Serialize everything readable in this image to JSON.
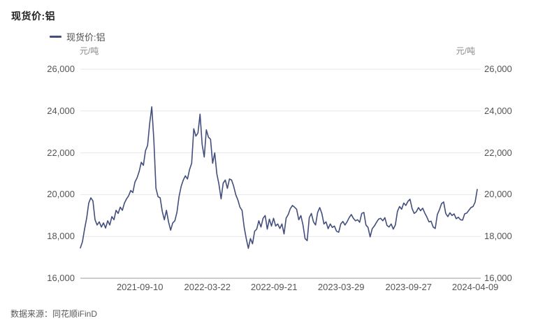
{
  "header": {
    "title": "现货价:铝"
  },
  "legend": {
    "label": "现货价:铝",
    "swatch_color": "#434e7d"
  },
  "axes": {
    "unit_left": "元/吨",
    "unit_right": "元/吨"
  },
  "footer": {
    "source": "数据来源：同花顺iFinD"
  },
  "chart_data": {
    "type": "line",
    "title": "现货价:铝",
    "series_name": "现货价:铝",
    "ylabel": "元/吨",
    "ylim": [
      16000,
      26000
    ],
    "grid": true,
    "legend_position": "top-left",
    "line_color": "#434e7d",
    "grid_color": "#e7e7e7",
    "axis_color": "#9b9b9b",
    "y_ticks": [
      {
        "value": 16000,
        "label": "16,000"
      },
      {
        "value": 18000,
        "label": "18,000"
      },
      {
        "value": 20000,
        "label": "20,000"
      },
      {
        "value": 22000,
        "label": "22,000"
      },
      {
        "value": 24000,
        "label": "24,000"
      },
      {
        "value": 26000,
        "label": "26,000"
      }
    ],
    "x_ticks": [
      {
        "label": "2021-09-10",
        "pos": 0.15
      },
      {
        "label": "2022-03-22",
        "pos": 0.32
      },
      {
        "label": "2022-09-21",
        "pos": 0.488
      },
      {
        "label": "2023-03-29",
        "pos": 0.657
      },
      {
        "label": "2023-09-27",
        "pos": 0.827
      },
      {
        "label": "2024-04-09",
        "pos": 0.995
      }
    ],
    "values": [
      17450,
      17750,
      18350,
      18870,
      19600,
      19850,
      19700,
      18800,
      18550,
      18700,
      18450,
      18650,
      18400,
      18750,
      18550,
      18950,
      18800,
      19250,
      19100,
      19400,
      19250,
      19600,
      19800,
      19950,
      20200,
      20100,
      20600,
      20800,
      21100,
      21550,
      21400,
      22100,
      22350,
      23400,
      24200,
      22600,
      20300,
      19900,
      19850,
      19200,
      18800,
      19250,
      18700,
      18300,
      18650,
      18750,
      19150,
      19900,
      20400,
      20700,
      20900,
      20750,
      21200,
      21500,
      23150,
      22800,
      22950,
      23850,
      22400,
      21800,
      23100,
      22750,
      22650,
      21500,
      22000,
      21000,
      20500,
      19800,
      20550,
      20700,
      20300,
      20750,
      20700,
      20400,
      20000,
      19750,
      19400,
      19250,
      18450,
      17900,
      17430,
      17900,
      17650,
      18250,
      18350,
      18750,
      18450,
      18870,
      19000,
      18350,
      18830,
      18500,
      18870,
      18500,
      18600,
      18380,
      18600,
      18120,
      18880,
      19050,
      19330,
      19480,
      19400,
      19300,
      18800,
      19000,
      18550,
      17900,
      17800,
      18900,
      19100,
      18700,
      18550,
      19150,
      19380,
      19100,
      18600,
      18700,
      18370,
      18600,
      18430,
      18500,
      18250,
      18200,
      18600,
      18720,
      18550,
      18700,
      18900,
      19050,
      18870,
      18750,
      18800,
      18680,
      19100,
      19150,
      18550,
      18430,
      17980,
      18370,
      18500,
      18670,
      18830,
      18870,
      18750,
      18900,
      18530,
      18450,
      18600,
      18350,
      18550,
      19200,
      19430,
      19300,
      19600,
      19480,
      19680,
      19780,
      19330,
      19100,
      19180,
      19380,
      19230,
      19350,
      19120,
      18930,
      18700,
      18730,
      18450,
      18380,
      19050,
      19280,
      19570,
      19650,
      19100,
      18950,
      19130,
      19000,
      19080,
      18850,
      18920,
      18800,
      18780,
      19080,
      19120,
      19250,
      19380,
      19430,
      19650,
      20250
    ]
  }
}
